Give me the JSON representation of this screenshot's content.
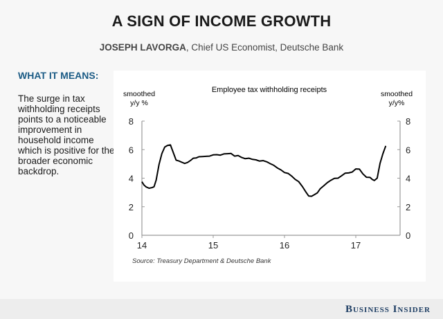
{
  "header": {
    "title": "A SIGN OF INCOME GROWTH",
    "author_name": "JOSEPH LAVORGA",
    "author_role": ", Chief US Economist, Deutsche Bank"
  },
  "sidebar": {
    "heading": "WHAT IT MEANS:",
    "body": "The surge in tax withholding receipts points to a noticeable improvement in household income which is positive for the broader economic backdrop."
  },
  "footer": {
    "brand": "Business Insider"
  },
  "chart_data": {
    "type": "line",
    "title": "Employee tax withholding receipts",
    "ylabel_left": [
      "smoothed",
      "y/y %"
    ],
    "ylabel_right": [
      "smoothed",
      "y/y%"
    ],
    "xlabel": "",
    "source": "Source: Treasury Department & Deutsche Bank",
    "xlim": [
      14,
      17.75
    ],
    "ylim": [
      0,
      8
    ],
    "x_ticks": [
      14,
      15,
      16,
      17
    ],
    "x_tick_labels": [
      "14",
      "15",
      "16",
      "17"
    ],
    "y_ticks": [
      0,
      2,
      4,
      6,
      8
    ],
    "y_tick_labels": [
      "0",
      "2",
      "4",
      "6",
      "8"
    ],
    "grid": false,
    "legend": "none",
    "series": [
      {
        "name": "Employee tax withholding receipts",
        "color": "#000000",
        "x": [
          14.0,
          14.03,
          14.06,
          14.1,
          14.14,
          14.17,
          14.2,
          14.24,
          14.28,
          14.32,
          14.36,
          14.4,
          14.44,
          14.48,
          14.52,
          14.56,
          14.6,
          14.64,
          14.68,
          14.72,
          14.76,
          14.8,
          14.85,
          14.9,
          14.95,
          15.0,
          15.05,
          15.1,
          15.15,
          15.2,
          15.25,
          15.3,
          15.35,
          15.4,
          15.45,
          15.5,
          15.55,
          15.6,
          15.65,
          15.7,
          15.75,
          15.8,
          15.85,
          15.9,
          15.95,
          16.0,
          16.05,
          16.1,
          16.15,
          16.2,
          16.25,
          16.3,
          16.34,
          16.38,
          16.42,
          16.46,
          16.5,
          16.55,
          16.6,
          16.65,
          16.7,
          16.75,
          16.8,
          16.85,
          16.9,
          16.95,
          17.0,
          17.05,
          17.1,
          17.15,
          17.2,
          17.23,
          17.26,
          17.3,
          17.34,
          17.38,
          17.42
        ],
        "y": [
          3.7,
          3.5,
          3.4,
          3.35,
          3.3,
          3.4,
          3.9,
          4.9,
          5.7,
          6.2,
          6.35,
          6.3,
          5.8,
          5.3,
          5.15,
          5.1,
          5.05,
          5.15,
          5.2,
          5.4,
          5.45,
          5.45,
          5.5,
          5.55,
          5.6,
          5.6,
          5.65,
          5.65,
          5.65,
          5.7,
          5.75,
          5.6,
          5.55,
          5.45,
          5.4,
          5.35,
          5.3,
          5.3,
          5.25,
          5.2,
          5.15,
          5.05,
          4.85,
          4.7,
          4.6,
          4.45,
          4.3,
          4.15,
          3.95,
          3.7,
          3.4,
          3.05,
          2.8,
          2.7,
          2.85,
          3.0,
          3.2,
          3.45,
          3.7,
          3.9,
          3.95,
          4.0,
          4.2,
          4.3,
          4.35,
          4.45,
          4.7,
          4.6,
          4.3,
          4.1,
          4.0,
          3.9,
          3.85,
          4.05,
          5.0,
          5.7,
          6.3
        ]
      }
    ]
  }
}
